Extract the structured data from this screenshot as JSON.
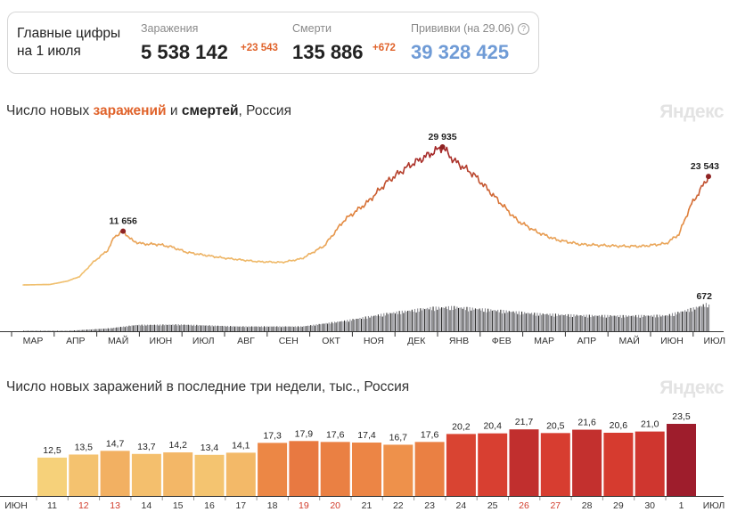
{
  "summary": {
    "title_line1": "Главные цифры",
    "title_line2": "на 1 июля",
    "infections": {
      "label": "Заражения",
      "value": "5 538 142",
      "delta": "+23 543"
    },
    "deaths": {
      "label": "Смерти",
      "value": "135 886",
      "delta": "+672"
    },
    "vaccinations": {
      "label": "Прививки (на 29.06)",
      "value": "39 328 425",
      "help": "?"
    }
  },
  "brand": "Яндекс",
  "colors": {
    "accent": "#e0632b",
    "vaccination": "#6f9bd6",
    "deaths_bars": "#3a3a3a",
    "brand_watermark": "#e3e3e3"
  },
  "chart_data": [
    {
      "type": "line",
      "title_parts": [
        "Число новых ",
        "заражений",
        " и ",
        "смертей",
        ", Россия"
      ],
      "x_ticks": [
        "МАР",
        "АПР",
        "МАЙ",
        "ИЮН",
        "ИЮЛ",
        "АВГ",
        "СЕН",
        "ОКТ",
        "НОЯ",
        "ДЕК",
        "ЯНВ",
        "ФЕВ",
        "МАР",
        "АПР",
        "МАЙ",
        "ИЮН",
        "ИЮЛ"
      ],
      "series": [
        {
          "name": "заражений",
          "points": [
            [
              "2020-03-01",
              0
            ],
            [
              "2020-03-20",
              100
            ],
            [
              "2020-04-01",
              800
            ],
            [
              "2020-04-10",
              1800
            ],
            [
              "2020-04-20",
              5000
            ],
            [
              "2020-04-30",
              7500
            ],
            [
              "2020-05-05",
              10500
            ],
            [
              "2020-05-11",
              11656
            ],
            [
              "2020-05-18",
              9500
            ],
            [
              "2020-05-25",
              8900
            ],
            [
              "2020-06-05",
              8800
            ],
            [
              "2020-06-15",
              8200
            ],
            [
              "2020-06-25",
              7100
            ],
            [
              "2020-07-05",
              6600
            ],
            [
              "2020-07-20",
              5900
            ],
            [
              "2020-08-01",
              5500
            ],
            [
              "2020-08-15",
              5050
            ],
            [
              "2020-09-01",
              4900
            ],
            [
              "2020-09-15",
              5700
            ],
            [
              "2020-10-01",
              8500
            ],
            [
              "2020-10-15",
              14000
            ],
            [
              "2020-11-01",
              18000
            ],
            [
              "2020-11-15",
              22500
            ],
            [
              "2020-12-01",
              26000
            ],
            [
              "2020-12-10",
              27500
            ],
            [
              "2020-12-24",
              29935
            ],
            [
              "2021-01-01",
              27000
            ],
            [
              "2021-01-15",
              24000
            ],
            [
              "2021-02-01",
              18500
            ],
            [
              "2021-02-15",
              14000
            ],
            [
              "2021-03-01",
              11500
            ],
            [
              "2021-03-15",
              9800
            ],
            [
              "2021-04-01",
              8800
            ],
            [
              "2021-04-15",
              8600
            ],
            [
              "2021-05-01",
              8400
            ],
            [
              "2021-05-15",
              8400
            ],
            [
              "2021-06-01",
              9000
            ],
            [
              "2021-06-10",
              11000
            ],
            [
              "2021-06-18",
              17000
            ],
            [
              "2021-06-25",
              20500
            ],
            [
              "2021-07-01",
              23543
            ]
          ]
        },
        {
          "name": "смертей",
          "points": [
            [
              "2020-03-01",
              0
            ],
            [
              "2020-04-01",
              10
            ],
            [
              "2020-05-01",
              70
            ],
            [
              "2020-05-20",
              150
            ],
            [
              "2020-06-20",
              160
            ],
            [
              "2020-08-01",
              115
            ],
            [
              "2020-09-15",
              115
            ],
            [
              "2020-10-15",
              250
            ],
            [
              "2020-11-15",
              430
            ],
            [
              "2020-12-15",
              560
            ],
            [
              "2021-01-01",
              580
            ],
            [
              "2021-02-01",
              500
            ],
            [
              "2021-03-01",
              420
            ],
            [
              "2021-04-01",
              380
            ],
            [
              "2021-05-01",
              370
            ],
            [
              "2021-06-01",
              380
            ],
            [
              "2021-06-20",
              550
            ],
            [
              "2021-07-01",
              672
            ]
          ]
        }
      ],
      "annotations": [
        {
          "label": "11 656",
          "x": "2020-05-11",
          "value": 11656,
          "series": "заражений"
        },
        {
          "label": "29 935",
          "x": "2020-12-24",
          "value": 29935,
          "series": "заражений"
        },
        {
          "label": "23 543",
          "x": "2021-07-01",
          "value": 23543,
          "series": "заражений"
        },
        {
          "label": "672",
          "x": "2021-07-01",
          "value": 672,
          "series": "смертей"
        }
      ]
    },
    {
      "type": "bar",
      "title": "Число новых заражений в последние три недели, тыс., Россия",
      "x_edge_labels": [
        "ИЮН",
        "ИЮЛ"
      ],
      "categories": [
        "11",
        "12",
        "13",
        "14",
        "15",
        "16",
        "17",
        "18",
        "19",
        "20",
        "21",
        "22",
        "23",
        "24",
        "25",
        "26",
        "27",
        "28",
        "29",
        "30",
        "1"
      ],
      "weekend": [
        false,
        true,
        true,
        false,
        false,
        false,
        false,
        false,
        true,
        true,
        false,
        false,
        false,
        false,
        false,
        true,
        true,
        false,
        false,
        false,
        false
      ],
      "values": [
        12.5,
        13.5,
        14.7,
        13.7,
        14.2,
        13.4,
        14.1,
        17.3,
        17.9,
        17.6,
        17.4,
        16.7,
        17.6,
        20.2,
        20.4,
        21.7,
        20.5,
        21.6,
        20.6,
        21.0,
        23.5
      ],
      "value_labels": [
        "12,5",
        "13,5",
        "14,7",
        "13,7",
        "14,2",
        "13,4",
        "14,1",
        "17,3",
        "17,9",
        "17,6",
        "17,4",
        "16,7",
        "17,6",
        "20,2",
        "20,4",
        "21,7",
        "20,5",
        "21,6",
        "20,6",
        "21,0",
        "23,5"
      ]
    }
  ]
}
